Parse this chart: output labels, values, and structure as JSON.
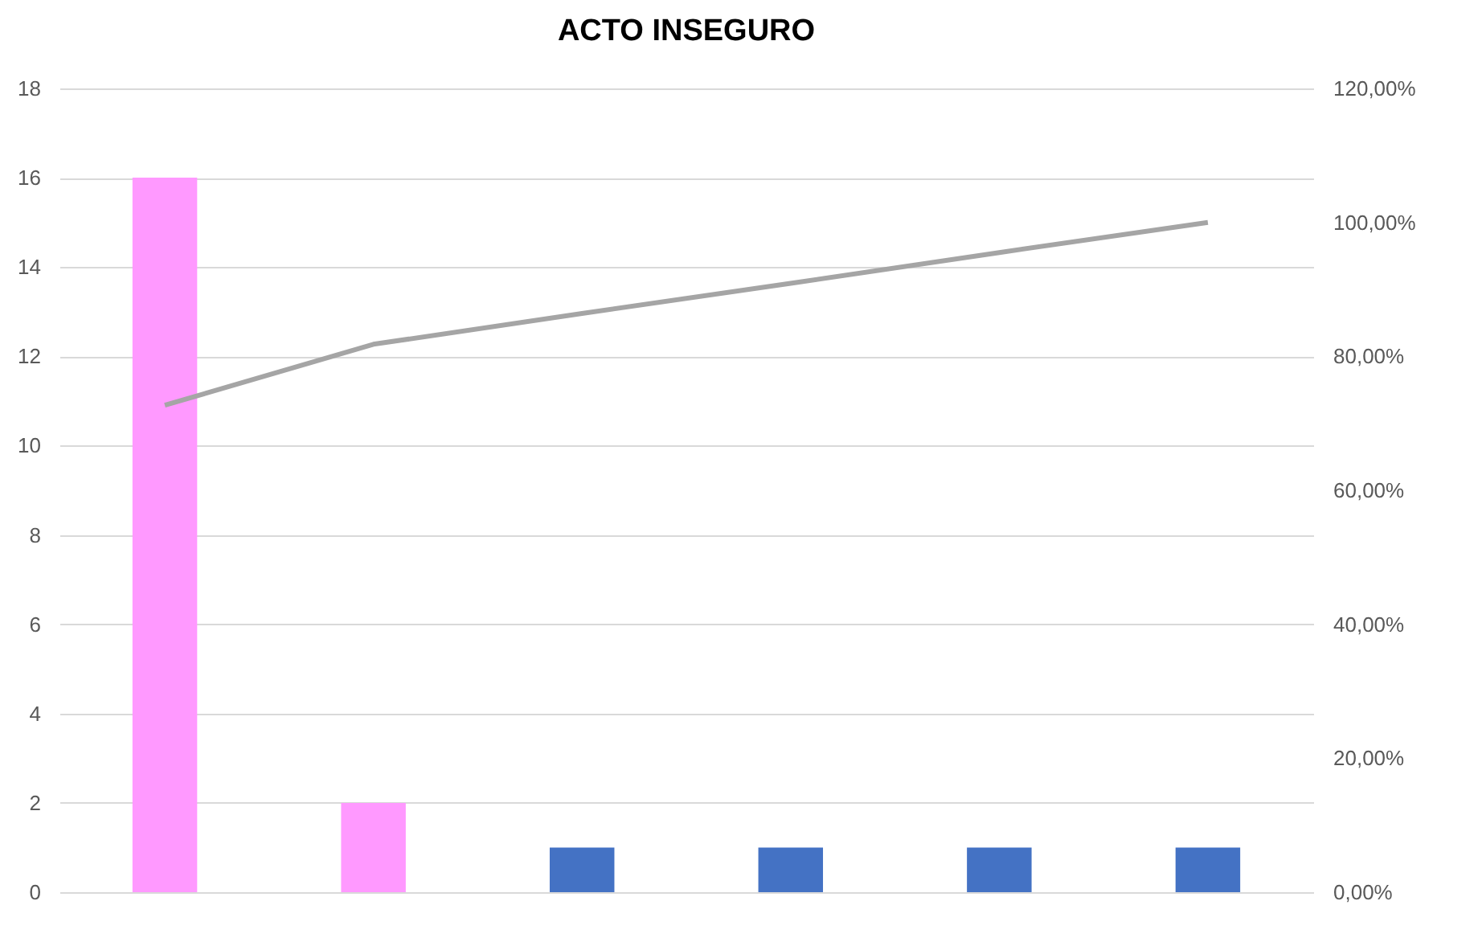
{
  "chart_data": {
    "type": "bar",
    "title": "ACTO INSEGURO",
    "categories": [
      null,
      null,
      null,
      null,
      null,
      null
    ],
    "series": [
      {
        "colors": [
          "#ff99ff",
          "#ff99ff",
          "#4472c4",
          "#4472c4",
          "#4472c4",
          "#4472c4"
        ],
        "values": [
          16,
          2,
          1,
          1,
          1,
          1
        ]
      },
      {
        "type": "line",
        "axis": "y2",
        "color": "#a5a5a5",
        "values": [
          72.7,
          81.8,
          86.4,
          90.9,
          95.5,
          100
        ]
      }
    ],
    "ylim": [
      0,
      18
    ],
    "yticks": [
      0,
      2,
      4,
      6,
      8,
      10,
      12,
      14,
      16,
      18
    ],
    "y2lim": [
      0,
      120
    ],
    "y2ticks": [
      {
        "value": 0,
        "label": "0,00%"
      },
      {
        "value": 20,
        "label": "20,00%"
      },
      {
        "value": 40,
        "label": "40,00%"
      },
      {
        "value": 60,
        "label": "60,00%"
      },
      {
        "value": 80,
        "label": "80,00%"
      },
      {
        "value": 100,
        "label": "100,00%"
      },
      {
        "value": 120,
        "label": "120,00%"
      }
    ],
    "grid": "y"
  }
}
